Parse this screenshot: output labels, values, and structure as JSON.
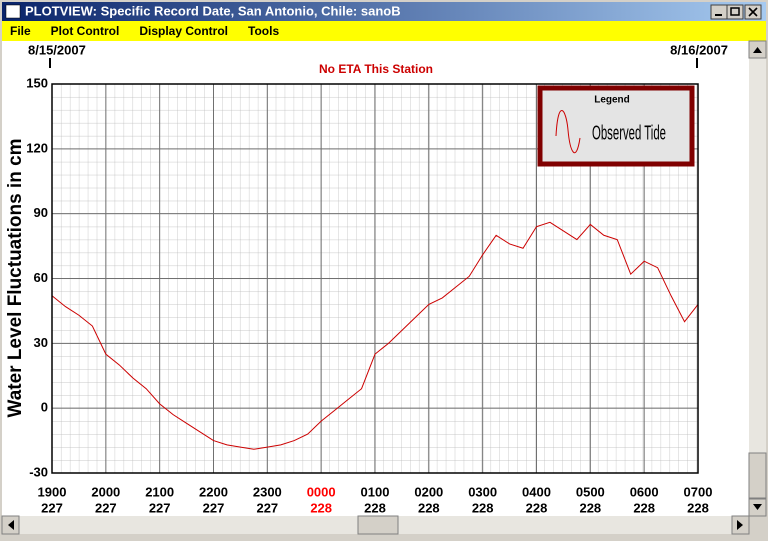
{
  "window": {
    "title": "PLOTVIEW: Specific Record Date, San Antonio, Chile: sanoB",
    "menu": [
      "File",
      "Plot Control",
      "Display Control",
      "Tools"
    ]
  },
  "chart_data": {
    "type": "line",
    "start_date": "8/15/2007",
    "end_date": "8/16/2007",
    "subtitle": "No ETA This Station",
    "y_label": "Water Level Fluctuations in cm",
    "legend_title": "Legend",
    "legend_position": "top-right",
    "grid": true,
    "x": [
      0,
      0.25,
      0.5,
      0.75,
      1,
      1.25,
      1.5,
      1.75,
      2,
      2.25,
      2.5,
      2.75,
      3,
      3.25,
      3.5,
      3.75,
      4,
      4.25,
      4.5,
      4.75,
      5,
      5.25,
      5.5,
      5.75,
      6,
      6.25,
      6.5,
      6.75,
      7,
      7.25,
      7.5,
      7.75,
      8,
      8.25,
      8.5,
      8.75,
      9,
      9.25,
      9.5,
      9.75,
      10,
      10.25,
      10.5,
      10.75,
      11,
      11.25,
      11.5,
      11.75,
      12
    ],
    "series": [
      {
        "name": "Observed Tide",
        "color": "#cc0000",
        "values": [
          52,
          47,
          43,
          38,
          25,
          20,
          14,
          9,
          2,
          -3,
          -7,
          -11,
          -15,
          -17,
          -18,
          -19,
          -18,
          -17,
          -15,
          -12,
          -6,
          -1,
          4,
          9,
          25,
          30,
          36,
          42,
          48,
          51,
          56,
          61,
          71,
          80,
          76,
          74,
          84,
          86,
          82,
          78,
          85,
          80,
          78,
          62,
          68,
          65,
          52,
          40,
          48
        ]
      }
    ],
    "xlim": [
      0,
      12
    ],
    "ylim": [
      -30,
      150
    ],
    "yticks": [
      -30,
      0,
      30,
      60,
      90,
      120,
      150
    ],
    "xticks": [
      {
        "value": 0,
        "label": "1900",
        "day": "227"
      },
      {
        "value": 1,
        "label": "2000",
        "day": "227"
      },
      {
        "value": 2,
        "label": "2100",
        "day": "227"
      },
      {
        "value": 3,
        "label": "2200",
        "day": "227"
      },
      {
        "value": 4,
        "label": "2300",
        "day": "227"
      },
      {
        "value": 5,
        "label": "0000",
        "day": "228",
        "color": "#ff0000"
      },
      {
        "value": 6,
        "label": "0100",
        "day": "228"
      },
      {
        "value": 7,
        "label": "0200",
        "day": "228"
      },
      {
        "value": 8,
        "label": "0300",
        "day": "228"
      },
      {
        "value": 9,
        "label": "0400",
        "day": "228"
      },
      {
        "value": 10,
        "label": "0500",
        "day": "228"
      },
      {
        "value": 11,
        "label": "0600",
        "day": "228"
      },
      {
        "value": 12,
        "label": "0700",
        "day": "228"
      }
    ]
  }
}
